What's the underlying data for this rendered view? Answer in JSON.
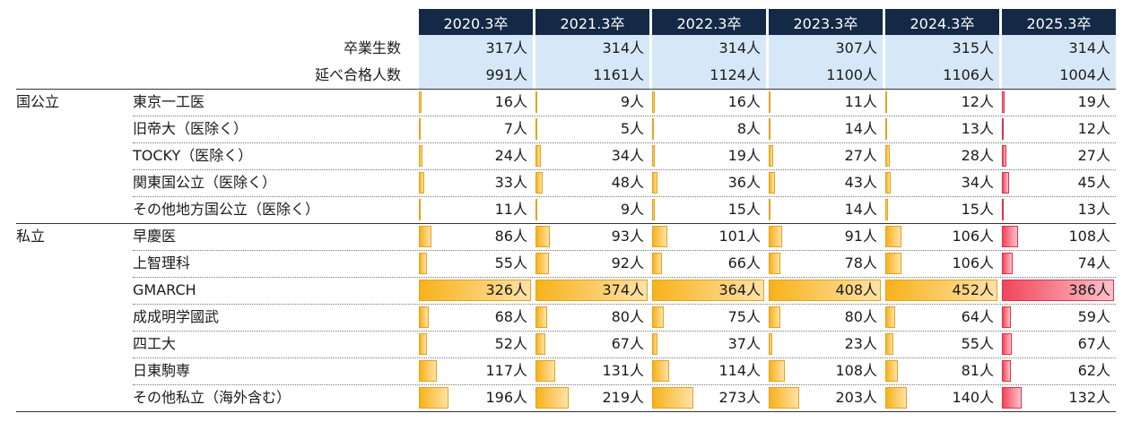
{
  "chart_data": {
    "type": "table",
    "years": [
      "2020.3卒",
      "2021.3卒",
      "2022.3卒",
      "2023.3卒",
      "2024.3卒",
      "2025.3卒"
    ],
    "summary": [
      {
        "label": "卒業生数",
        "values": [
          "317人",
          "314人",
          "314人",
          "307人",
          "315人",
          "314人"
        ]
      },
      {
        "label": "延べ合格人数",
        "values": [
          "991人",
          "1161人",
          "1124人",
          "1100人",
          "1106人",
          "1004人"
        ]
      }
    ],
    "groups": [
      {
        "name": "国公立",
        "rows": [
          {
            "label": "東京一工医",
            "values": [
              16,
              9,
              16,
              11,
              12,
              19
            ]
          },
          {
            "label": "旧帝大（医除く）",
            "values": [
              7,
              5,
              8,
              14,
              13,
              12
            ]
          },
          {
            "label": "TOCKY（医除く）",
            "values": [
              24,
              34,
              19,
              27,
              28,
              27
            ]
          },
          {
            "label": "関東国公立（医除く）",
            "values": [
              33,
              48,
              36,
              43,
              34,
              45
            ]
          },
          {
            "label": "その他地方国公立（医除く）",
            "values": [
              11,
              9,
              15,
              14,
              15,
              13
            ]
          }
        ]
      },
      {
        "name": "私立",
        "rows": [
          {
            "label": "早慶医",
            "values": [
              86,
              93,
              101,
              91,
              106,
              108
            ]
          },
          {
            "label": "上智理科",
            "values": [
              55,
              92,
              66,
              78,
              106,
              74
            ]
          },
          {
            "label": "GMARCH",
            "values": [
              326,
              374,
              364,
              408,
              452,
              386
            ]
          },
          {
            "label": "成成明学國武",
            "values": [
              68,
              80,
              75,
              80,
              64,
              59
            ]
          },
          {
            "label": "四工大",
            "values": [
              52,
              67,
              37,
              23,
              55,
              67
            ]
          },
          {
            "label": "日東駒専",
            "values": [
              117,
              131,
              114,
              108,
              81,
              62
            ]
          },
          {
            "label": "その他私立（海外含む）",
            "values": [
              196,
              219,
              273,
              203,
              140,
              132
            ]
          }
        ]
      }
    ],
    "unit": "人",
    "colors": {
      "header_bg": "#132945",
      "summary_bg": "#d6e8f7",
      "bar_gold": "#f7b21b",
      "bar_red": "#f0455b"
    }
  }
}
